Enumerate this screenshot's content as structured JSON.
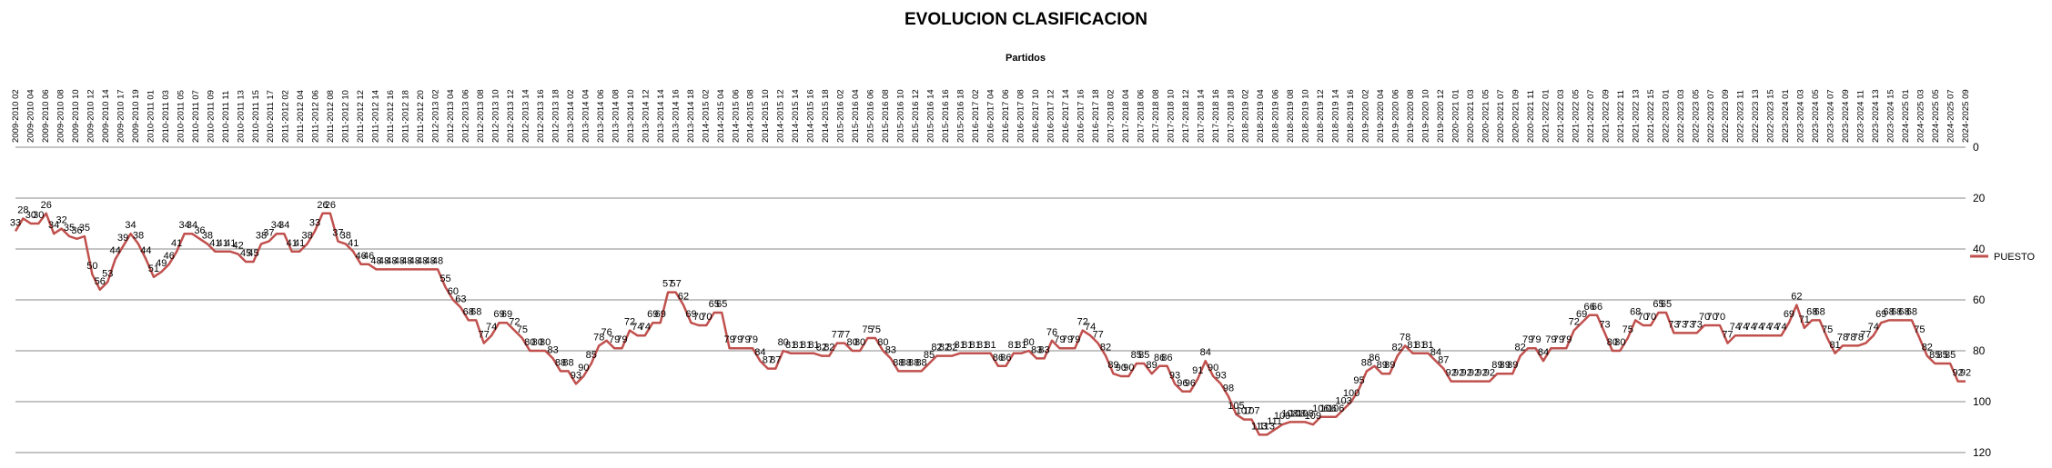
{
  "chart_data": {
    "type": "line",
    "title": "EVOLUCION CLASIFICACION",
    "xlabel": "Partidos",
    "ylabel": "",
    "y_reversed": true,
    "ylim": [
      0,
      120
    ],
    "yticks": [
      0,
      20,
      40,
      60,
      80,
      100,
      120
    ],
    "grid": true,
    "legend_position": "right",
    "x_labels_shown": [
      "2009-2010 02",
      "2009-2010 04",
      "2009-2010 06",
      "2009-2010 08",
      "2009-2010 10",
      "2009-2010 12",
      "2009-2010 14",
      "2009-2010 17",
      "2009-2010 19",
      "2010-2011 01",
      "2010-2011 03",
      "2010-2011 05",
      "2010-2011 07",
      "2010-2011 09",
      "2010-2011 11",
      "2010-2011 13",
      "2010-2011 15",
      "2010-2011 17",
      "2011-2012 02",
      "2011-2012 04",
      "2011-2012 06",
      "2011-2012 08",
      "2011-2012 10",
      "2011-2012 12",
      "2011-2012 14",
      "2011-2012 16",
      "2011-2012 18",
      "2011-2012 20",
      "2012-2013 02",
      "2012-2013 04",
      "2012-2013 06",
      "2012-2013 08",
      "2012-2013 10",
      "2012-2013 12",
      "2012-2013 14",
      "2012-2013 16",
      "2012-2013 18",
      "2013-2014 02",
      "2013-2014 04",
      "2013-2014 06",
      "2013-2014 08",
      "2013-2014 10",
      "2013-2014 12",
      "2013-2014 14",
      "2013-2014 16",
      "2013-2014 18",
      "2014-2015 02",
      "2014-2015 04",
      "2014-2015 06",
      "2014-2015 08",
      "2014-2015 10",
      "2014-2015 12",
      "2014-2015 14",
      "2014-2015 16",
      "2014-2015 18",
      "2015-2016 02",
      "2015-2016 04",
      "2015-2016 06",
      "2015-2016 08",
      "2015-2016 10",
      "2015-2016 12",
      "2015-2016 14",
      "2015-2016 16",
      "2015-2016 18",
      "2016-2017 02",
      "2016-2017 04",
      "2016-2017 06",
      "2016-2017 08",
      "2016-2017 10",
      "2016-2017 12",
      "2016-2017 14",
      "2016-2017 16",
      "2016-2017 18",
      "2017-2018 02",
      "2017-2018 04",
      "2017-2018 06",
      "2017-2018 08",
      "2017-2018 10",
      "2017-2018 12",
      "2017-2018 14",
      "2017-2018 16",
      "2017-2018 18",
      "2018-2019 02",
      "2018-2019 04",
      "2018-2019 06",
      "2018-2019 08",
      "2018-2019 10",
      "2018-2019 12",
      "2018-2019 14",
      "2018-2019 16",
      "2019-2020 02",
      "2019-2020 04",
      "2019-2020 06",
      "2019-2020 08",
      "2019-2020 10",
      "2019-2020 12",
      "2020-2021 01",
      "2020-2021 03",
      "2020-2021 05",
      "2020-2021 07",
      "2020-2021 09",
      "2020-2021 11",
      "2021-2022 01",
      "2021-2022 03",
      "2021-2022 05",
      "2021-2022 07",
      "2021-2022 09",
      "2021-2022 11",
      "2021-2022 13",
      "2021-2022 15",
      "2022-2023 01",
      "2022-2023 03",
      "2022-2023 05",
      "2022-2023 07",
      "2022-2023 09",
      "2022-2023 11",
      "2022-2023 13",
      "2022-2023 15",
      "2023-2024 01",
      "2023-2024 03",
      "2023-2024 05",
      "2023-2024 07",
      "2023-2024 09",
      "2023-2024 11",
      "2023-2024 13",
      "2023-2024 15",
      "2024-2025 01",
      "2024-2025 03",
      "2024-2025 05",
      "2024-2025 07",
      "2024-2025 09"
    ],
    "series": [
      {
        "name": "PUESTO",
        "color": "#c0504d",
        "values": [
          33,
          28,
          30,
          30,
          26,
          34,
          32,
          35,
          36,
          35,
          50,
          56,
          53,
          44,
          39,
          34,
          38,
          44,
          51,
          49,
          46,
          41,
          34,
          34,
          36,
          38,
          41,
          41,
          41,
          42,
          45,
          45,
          38,
          37,
          34,
          34,
          41,
          41,
          38,
          33,
          26,
          26,
          37,
          38,
          41,
          46,
          46,
          48,
          48,
          48,
          48,
          48,
          48,
          48,
          48,
          48,
          55,
          60,
          63,
          68,
          68,
          77,
          74,
          69,
          69,
          72,
          75,
          80,
          80,
          80,
          83,
          88,
          88,
          93,
          90,
          85,
          78,
          76,
          79,
          79,
          72,
          74,
          74,
          69,
          69,
          57,
          57,
          62,
          69,
          70,
          70,
          65,
          65,
          79,
          79,
          79,
          79,
          84,
          87,
          87,
          80,
          81,
          81,
          81,
          81,
          82,
          82,
          77,
          77,
          80,
          80,
          75,
          75,
          80,
          83,
          88,
          88,
          88,
          88,
          85,
          82,
          82,
          82,
          81,
          81,
          81,
          81,
          81,
          86,
          86,
          81,
          81,
          80,
          83,
          83,
          76,
          79,
          79,
          79,
          72,
          74,
          77,
          82,
          89,
          90,
          90,
          85,
          85,
          89,
          86,
          86,
          93,
          96,
          96,
          91,
          84,
          90,
          93,
          98,
          105,
          107,
          107,
          113,
          113,
          111,
          109,
          108,
          108,
          108,
          109,
          106,
          106,
          106,
          103,
          100,
          95,
          88,
          86,
          89,
          89,
          82,
          78,
          81,
          81,
          81,
          84,
          87,
          92,
          92,
          92,
          92,
          92,
          92,
          89,
          89,
          89,
          82,
          79,
          79,
          84,
          79,
          79,
          79,
          72,
          69,
          66,
          66,
          73,
          80,
          80,
          75,
          68,
          70,
          70,
          65,
          65,
          73,
          73,
          73,
          73,
          70,
          70,
          70,
          77,
          74,
          74,
          74,
          74,
          74,
          74,
          74,
          69,
          62,
          71,
          68,
          68,
          75,
          81,
          78,
          78,
          78,
          77,
          74,
          69,
          68,
          68,
          68,
          68,
          75,
          82,
          85,
          85,
          85,
          92,
          92
        ]
      }
    ]
  },
  "legend": {
    "label": "PUESTO"
  }
}
